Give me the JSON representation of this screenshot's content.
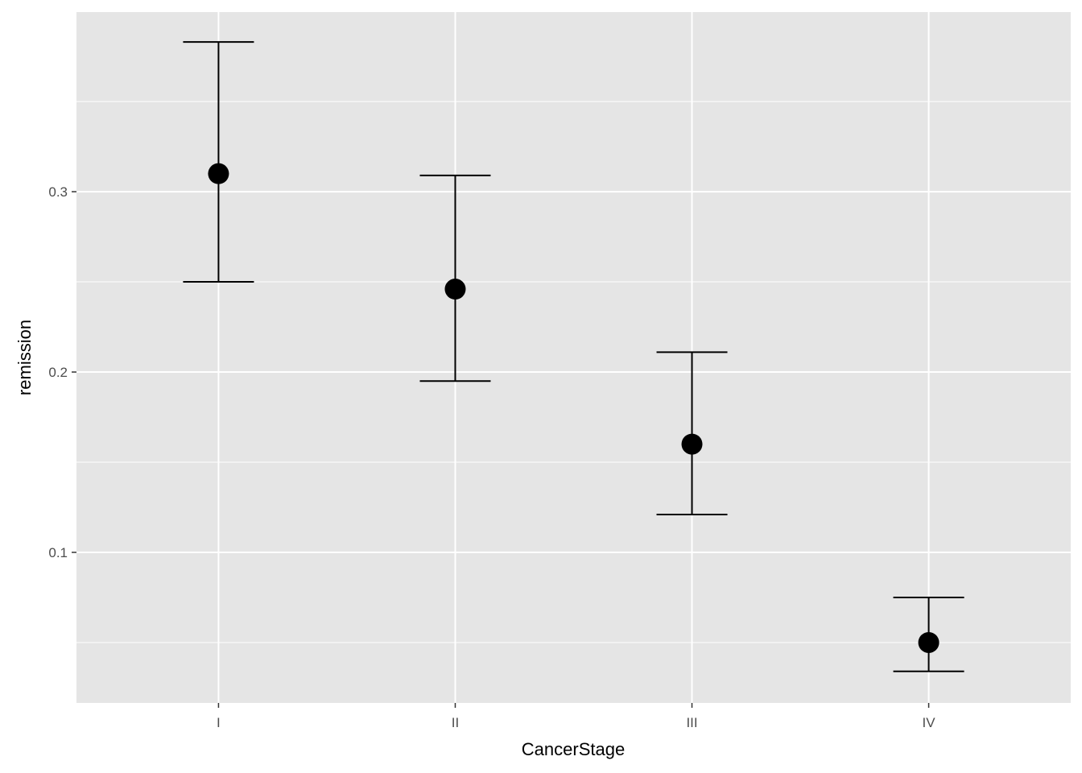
{
  "chart_data": {
    "type": "errorbar",
    "title": "",
    "xlabel": "CancerStage",
    "ylabel": "remission",
    "categories": [
      "I",
      "II",
      "III",
      "IV"
    ],
    "values": [
      0.31,
      0.246,
      0.16,
      0.05
    ],
    "lower": [
      0.25,
      0.195,
      0.121,
      0.034
    ],
    "upper": [
      0.383,
      0.309,
      0.211,
      0.075
    ],
    "ylim": [
      0.0165,
      0.3996
    ],
    "yticks": [
      0.1,
      0.2,
      0.3
    ],
    "ytick_labels": [
      "0.1",
      "0.2",
      "0.3"
    ],
    "yminor": [
      0.05,
      0.15,
      0.25,
      0.35
    ],
    "grid": true,
    "colors": {
      "panel": "#e5e5e5",
      "grid": "#ffffff",
      "marks": "#000000"
    }
  }
}
